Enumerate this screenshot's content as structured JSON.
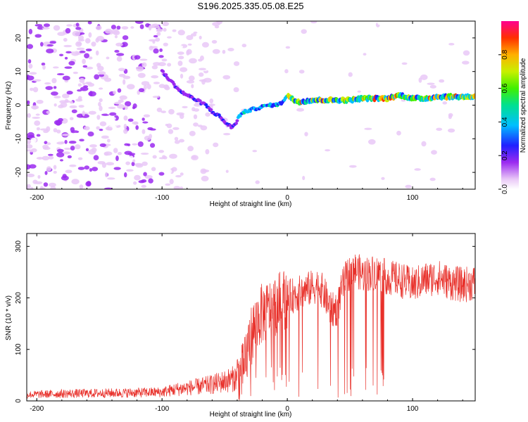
{
  "title": "S196.2025.335.05.08.E25",
  "colors": {
    "accent": "#e8302a",
    "axis": "#000000"
  },
  "chart_data": [
    {
      "type": "heatmap",
      "name": "spectrogram",
      "xlabel": "Height of straight line (km)",
      "ylabel": "Frequency (Hz)",
      "xlim": [
        -208,
        150
      ],
      "ylim": [
        -25,
        25
      ],
      "xticks": [
        -200,
        -100,
        0,
        100
      ],
      "yticks": [
        -20,
        -10,
        0,
        10,
        20
      ],
      "track": {
        "x": [
          -100,
          -95,
          -90,
          -85,
          -80,
          -75,
          -70,
          -65,
          -60,
          -55,
          -50,
          -45,
          -42,
          -38,
          -34,
          -30,
          -25,
          -20,
          -15,
          -10,
          -5,
          0,
          5,
          10,
          20,
          30,
          40,
          50,
          60,
          70,
          80,
          90,
          100,
          110,
          120,
          130,
          140,
          150
        ],
        "y": [
          10,
          8,
          6,
          4,
          3,
          2,
          1,
          0,
          -2,
          -3,
          -5,
          -6.5,
          -6,
          -3,
          -2,
          -1.5,
          -1,
          -0.5,
          0,
          0,
          0.5,
          3,
          1.5,
          1,
          1.5,
          1.5,
          1.5,
          1.5,
          2,
          2,
          2,
          3,
          2,
          2,
          2.5,
          2.5,
          2.5,
          2.5
        ]
      },
      "colorbar": {
        "label": "Normalized spectral amplitude",
        "ticks": [
          "0.0",
          "0.2",
          "0.4",
          "0.6",
          "0.8"
        ],
        "range": [
          0,
          1
        ]
      }
    },
    {
      "type": "line",
      "name": "snr",
      "xlabel": "Height of straight line (km)",
      "ylabel": "SNR (10 * v/v)",
      "xlim": [
        -208,
        150
      ],
      "ylim": [
        0,
        325
      ],
      "xticks": [
        -200,
        -100,
        0,
        100
      ],
      "yticks": [
        0,
        100,
        200,
        300
      ],
      "series": [
        {
          "name": "SNR",
          "color": "#e8302a",
          "x": [
            -208,
            -180,
            -150,
            -120,
            -100,
            -90,
            -80,
            -70,
            -60,
            -50,
            -40,
            -35,
            -30,
            -25,
            -20,
            -15,
            -10,
            -5,
            0,
            5,
            10,
            15,
            20,
            25,
            30,
            35,
            40,
            45,
            50,
            55,
            60,
            70,
            80,
            90,
            100,
            110,
            120,
            130,
            140,
            150
          ],
          "values": [
            12,
            14,
            15,
            16,
            17,
            22,
            25,
            28,
            32,
            38,
            45,
            55,
            120,
            150,
            170,
            175,
            185,
            195,
            200,
            205,
            210,
            215,
            220,
            225,
            205,
            175,
            180,
            230,
            250,
            255,
            245,
            250,
            240,
            235,
            225,
            235,
            240,
            230,
            225,
            230
          ]
        }
      ]
    }
  ]
}
